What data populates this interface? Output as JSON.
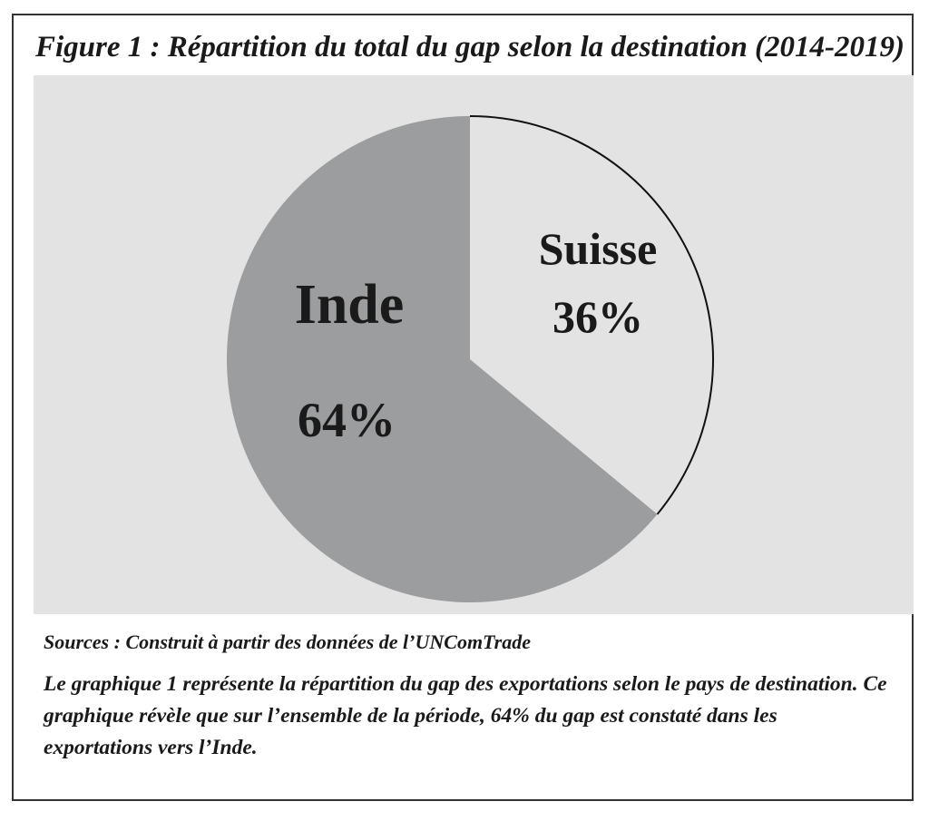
{
  "figure": {
    "title": "Figure 1 : Répartition du total du gap selon la destination (2014-2019)",
    "sources": "Sources : Construit à partir des données de l’UNComTrade",
    "caption": "Le graphique 1 représente la répartition du gap des exportations selon le pays de destination. Ce graphique révèle que sur l’ensemble de la période, 64% du gap est constaté dans les exportations vers l’Inde."
  },
  "chart_data": {
    "type": "pie",
    "start": "12 o'clock",
    "direction": "clockwise",
    "slices": [
      {
        "name": "Suisse",
        "value": 36,
        "label": "36%",
        "color": "#e3e3e3",
        "outlined": true
      },
      {
        "name": "Inde",
        "value": 64,
        "label": "64%",
        "color": "#9c9d9e",
        "outlined": false
      }
    ],
    "background_color": "#e3e3e3"
  }
}
